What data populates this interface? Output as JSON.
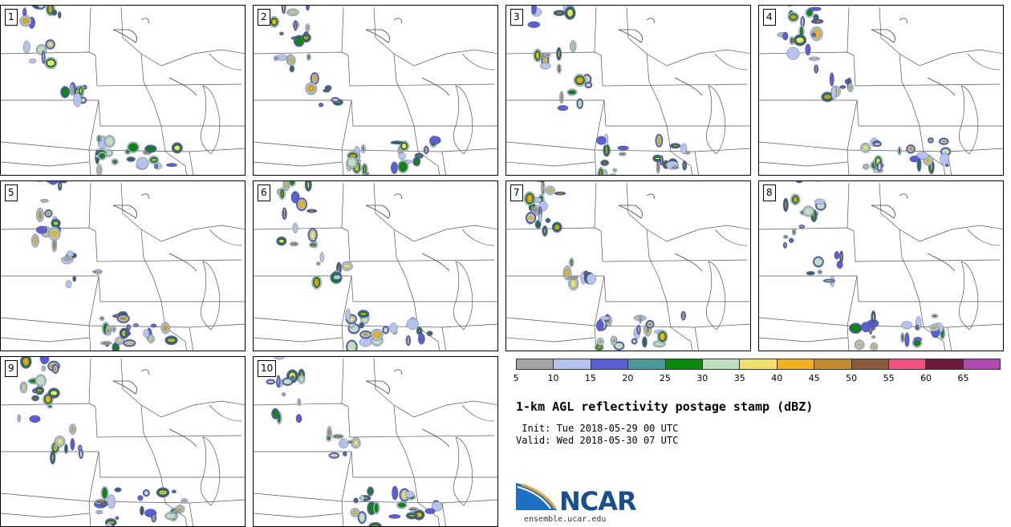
{
  "panels": [
    {
      "label": "1"
    },
    {
      "label": "2"
    },
    {
      "label": "3"
    },
    {
      "label": "4"
    },
    {
      "label": "5"
    },
    {
      "label": "6"
    },
    {
      "label": "7"
    },
    {
      "label": "8"
    },
    {
      "label": "9"
    },
    {
      "label": "10"
    }
  ],
  "colorbar": {
    "ticks": [
      "5",
      "10",
      "15",
      "20",
      "25",
      "30",
      "35",
      "40",
      "45",
      "50",
      "55",
      "60",
      "65"
    ],
    "colors": [
      "#a6a6a6",
      "#b4c2ec",
      "#5a5fd6",
      "#4a9a9a",
      "#0b8a0b",
      "#bfe0bf",
      "#efe070",
      "#f0b020",
      "#c08a30",
      "#8b5a3c",
      "#f05080",
      "#6b1a3a",
      "#b04ab0"
    ]
  },
  "title": "1-km AGL reflectivity postage stamp (dBZ)",
  "init_line": " Init: Tue 2018-05-29 00 UTC",
  "valid_line": "Valid: Wed 2018-05-30 07 UTC",
  "logo": {
    "text": "NCAR",
    "url": "ensemble.ucar.edu"
  }
}
